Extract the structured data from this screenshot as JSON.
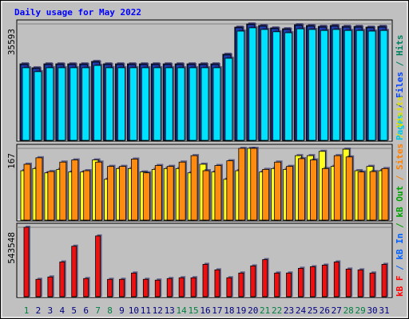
{
  "title": "Daily usage for May 2022",
  "legend_separator": " / ",
  "categories": [
    "1",
    "2",
    "3",
    "4",
    "5",
    "6",
    "7",
    "8",
    "9",
    "10",
    "11",
    "12",
    "13",
    "14",
    "15",
    "16",
    "17",
    "18",
    "19",
    "20",
    "21",
    "22",
    "23",
    "24",
    "25",
    "26",
    "27",
    "28",
    "29",
    "30",
    "31"
  ],
  "weekend_days": [
    0,
    6,
    7,
    13,
    14,
    20,
    21,
    27,
    28
  ],
  "weekend_color": "#008040",
  "weekday_color": "#000080",
  "chart_data": [
    {
      "type": "bar",
      "ylim": [
        0,
        35593
      ],
      "yticks": [
        35593
      ],
      "grid": true,
      "series": [
        {
          "name": "Hits",
          "color": "#008060",
          "bar_color": "#1f3fb0",
          "values": [
            23400,
            22190,
            23400,
            23400,
            23400,
            23400,
            24140,
            23400,
            23400,
            23400,
            23400,
            23400,
            23400,
            23400,
            23400,
            23400,
            23400,
            26330,
            34620,
            35593,
            35110,
            34380,
            34130,
            35350,
            35110,
            34860,
            35110,
            34860,
            34860,
            34620,
            34860
          ]
        },
        {
          "name": "Files",
          "color": "#0040ff",
          "bar_color": "#1f3fb0",
          "values": [
            23150,
            21950,
            23150,
            23150,
            23150,
            23150,
            23900,
            23150,
            23150,
            23150,
            23150,
            23150,
            23150,
            23150,
            23150,
            23150,
            23150,
            26100,
            34400,
            35400,
            34900,
            34150,
            33900,
            35100,
            34900,
            34600,
            34900,
            34600,
            34600,
            34400,
            34600
          ]
        },
        {
          "name": "Pages",
          "color": "#00c8e0",
          "bar_color": "#00e0ff",
          "values": [
            22200,
            21000,
            22200,
            22200,
            22200,
            22200,
            22900,
            22200,
            22200,
            22200,
            22200,
            22200,
            22200,
            22200,
            22200,
            22200,
            22200,
            25100,
            33400,
            34400,
            33900,
            33200,
            32900,
            34100,
            33900,
            33600,
            33900,
            33600,
            33600,
            33400,
            33600
          ]
        }
      ]
    },
    {
      "type": "bar",
      "ylim": [
        0,
        167
      ],
      "yticks": [
        167
      ],
      "grid": true,
      "series": [
        {
          "name": "Visits",
          "color": "#e0e000",
          "bar_color": "#ffff20",
          "values": [
            115,
            120,
            110,
            118,
            112,
            112,
            140,
            95,
            120,
            120,
            112,
            118,
            120,
            120,
            110,
            130,
            112,
            95,
            115,
            167,
            112,
            120,
            118,
            150,
            150,
            160,
            125,
            165,
            115,
            125,
            115
          ]
        },
        {
          "name": "Sites",
          "color": "#ff8000",
          "bar_color": "#ff8c10",
          "values": [
            130,
            145,
            113,
            135,
            140,
            115,
            135,
            125,
            125,
            142,
            110,
            127,
            125,
            135,
            150,
            115,
            127,
            138,
            167,
            167,
            118,
            135,
            125,
            143,
            140,
            120,
            150,
            147,
            112,
            113,
            120
          ]
        }
      ]
    },
    {
      "type": "bar",
      "ylim": [
        0,
        543548
      ],
      "yticks": [
        543548
      ],
      "grid": true,
      "series": [
        {
          "name": "kB F",
          "color": "#ff0000",
          "bar_color": "#ee1010",
          "values": [
            543548,
            135900,
            154400,
            271800,
            395300,
            142100,
            475600,
            135900,
            135900,
            185300,
            135900,
            129700,
            142100,
            148200,
            148200,
            253300,
            210000,
            148200,
            185300,
            240900,
            290300,
            185300,
            185300,
            222400,
            234700,
            247100,
            271800,
            216200,
            210000,
            185300,
            253300
          ]
        }
      ],
      "other_legend": [
        {
          "name": "kB In",
          "color": "#0060ff"
        },
        {
          "name": "kB Out",
          "color": "#00a000"
        }
      ]
    }
  ]
}
